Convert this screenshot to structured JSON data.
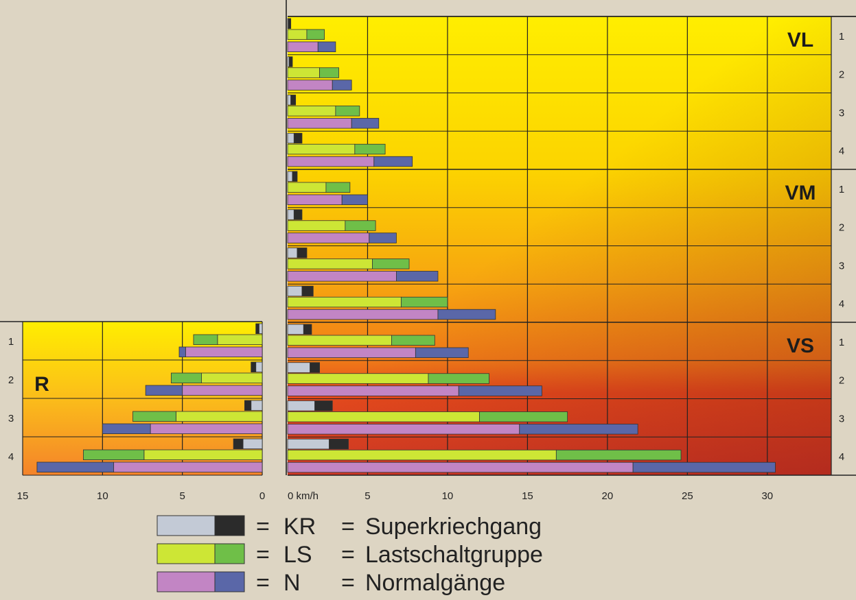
{
  "colors": {
    "background": "#ddd5c3",
    "kr_light": "#c3cad6",
    "kr_dark": "#2b2b2b",
    "ls_light": "#cde635",
    "ls_dark": "#6fbf48",
    "n_light": "#c285c4",
    "n_dark": "#5a67a8",
    "grid": "#222222"
  },
  "chart_data": {
    "type": "bar",
    "orientation": "horizontal",
    "x_unit": "km/h",
    "forward": {
      "xlim": [
        0,
        34
      ],
      "ticks": [
        "0",
        "5",
        "10",
        "15",
        "20",
        "25",
        "30"
      ],
      "first_tick_label": "0 km/h",
      "groups": [
        {
          "label": "VL",
          "gears": [
            {
              "gear": "1",
              "KR": [
                0.05,
                0.2
              ],
              "LS": [
                1.2,
                2.3
              ],
              "N": [
                1.9,
                3.0
              ]
            },
            {
              "gear": "2",
              "KR": [
                0.1,
                0.3
              ],
              "LS": [
                2.0,
                3.2
              ],
              "N": [
                2.8,
                4.0
              ]
            },
            {
              "gear": "3",
              "KR": [
                0.2,
                0.5
              ],
              "LS": [
                3.0,
                4.5
              ],
              "N": [
                4.0,
                5.7
              ]
            },
            {
              "gear": "4",
              "KR": [
                0.4,
                0.9
              ],
              "LS": [
                4.2,
                6.1
              ],
              "N": [
                5.4,
                7.8
              ]
            }
          ]
        },
        {
          "label": "VM",
          "gears": [
            {
              "gear": "1",
              "KR": [
                0.3,
                0.6
              ],
              "LS": [
                2.4,
                3.9
              ],
              "N": [
                3.4,
                5.0
              ]
            },
            {
              "gear": "2",
              "KR": [
                0.4,
                0.9
              ],
              "LS": [
                3.6,
                5.5
              ],
              "N": [
                5.1,
                6.8
              ]
            },
            {
              "gear": "3",
              "KR": [
                0.6,
                1.2
              ],
              "LS": [
                5.3,
                7.6
              ],
              "N": [
                6.8,
                9.4
              ]
            },
            {
              "gear": "4",
              "KR": [
                0.9,
                1.6
              ],
              "LS": [
                7.1,
                10.0
              ],
              "N": [
                9.4,
                13.0
              ]
            }
          ]
        },
        {
          "label": "VS",
          "gears": [
            {
              "gear": "1",
              "KR": [
                1.0,
                1.5
              ],
              "LS": [
                6.5,
                9.2
              ],
              "N": [
                8.0,
                11.3
              ]
            },
            {
              "gear": "2",
              "KR": [
                1.4,
                2.0
              ],
              "LS": [
                8.8,
                12.6
              ],
              "N": [
                10.7,
                15.9
              ]
            },
            {
              "gear": "3",
              "KR": [
                1.7,
                2.8
              ],
              "LS": [
                12.0,
                17.5
              ],
              "N": [
                14.5,
                21.9
              ]
            },
            {
              "gear": "4",
              "KR": [
                2.6,
                3.8
              ],
              "LS": [
                16.8,
                24.6
              ],
              "N": [
                21.6,
                30.5
              ]
            }
          ]
        }
      ]
    },
    "reverse": {
      "label": "R",
      "xlim": [
        0,
        15
      ],
      "ticks": [
        "15",
        "10",
        "5",
        "0"
      ],
      "gears": [
        {
          "gear": "1",
          "KR": [
            0.2,
            0.4
          ],
          "LS": [
            2.8,
            4.3
          ],
          "N": [
            4.8,
            5.2
          ]
        },
        {
          "gear": "2",
          "KR": [
            0.4,
            0.7
          ],
          "LS": [
            3.8,
            5.7
          ],
          "N": [
            5.0,
            7.3
          ]
        },
        {
          "gear": "3",
          "KR": [
            0.7,
            1.1
          ],
          "LS": [
            5.4,
            8.1
          ],
          "N": [
            7.0,
            10.0
          ]
        },
        {
          "gear": "4",
          "KR": [
            1.2,
            1.8
          ],
          "LS": [
            7.4,
            11.2
          ],
          "N": [
            9.3,
            14.1
          ]
        }
      ]
    },
    "legend": [
      {
        "abbr": "KR",
        "name": "Superkriechgang"
      },
      {
        "abbr": "LS",
        "name": "Lastschaltgruppe"
      },
      {
        "abbr": "N",
        "name": "Normalgänge"
      }
    ],
    "legend_equals": "=",
    "legend_placement": "bottom"
  }
}
